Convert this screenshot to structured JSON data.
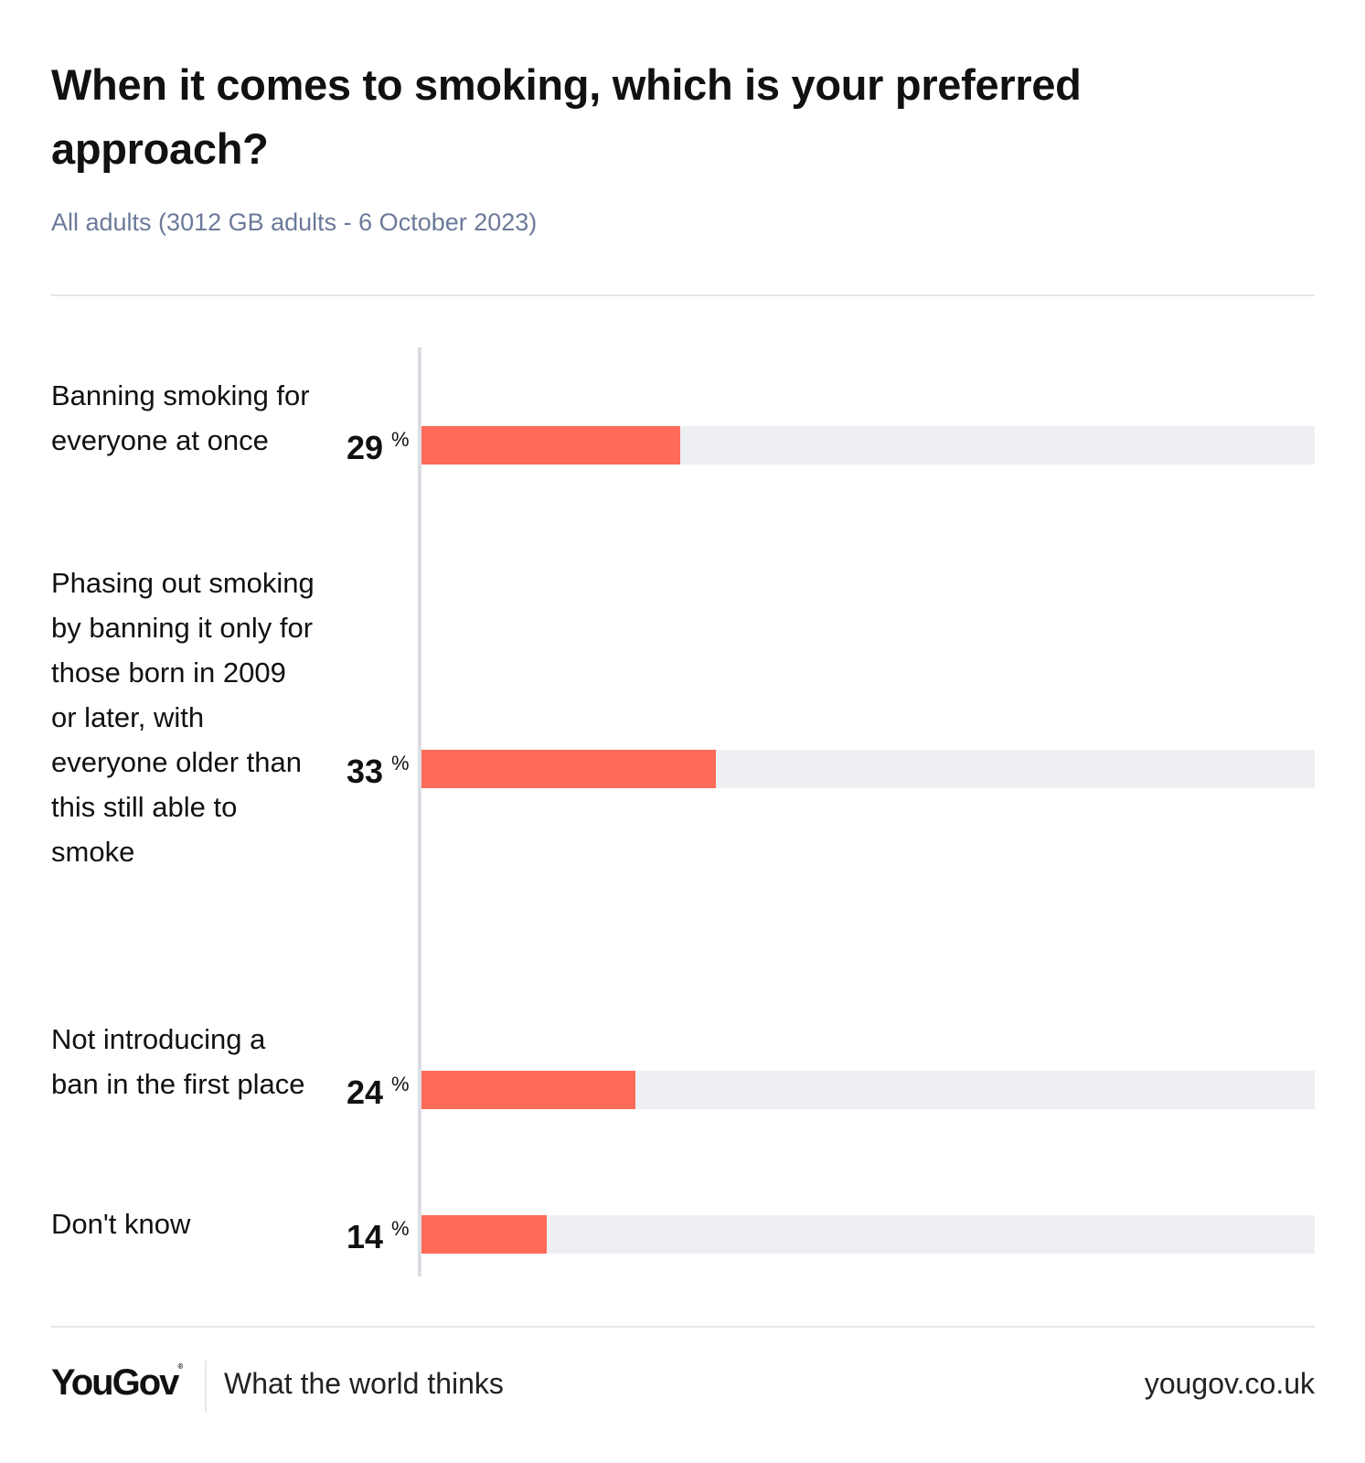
{
  "chart_data": {
    "type": "bar",
    "orientation": "horizontal",
    "title": "When it comes to smoking, which is your preferred approach?",
    "subtitle": "All adults (3012 GB adults - 6 October 2023)",
    "categories": [
      "Banning smoking for everyone at once",
      "Phasing out smoking by banning it only for those born in 2009 or later, with everyone older than this still able to smoke",
      "Not introducing a ban in the first place",
      "Don't know"
    ],
    "values": [
      29,
      33,
      24,
      14
    ],
    "value_suffix": "%",
    "xlim": [
      0,
      100
    ],
    "bar_color": "#ff6a59",
    "track_color": "#eeeff2"
  },
  "footer": {
    "logo": "YouGov",
    "tagline": "What the world thinks",
    "url": "yougov.co.uk"
  },
  "colors": {
    "subtitle": "#6b7a99",
    "text": "#111111"
  }
}
